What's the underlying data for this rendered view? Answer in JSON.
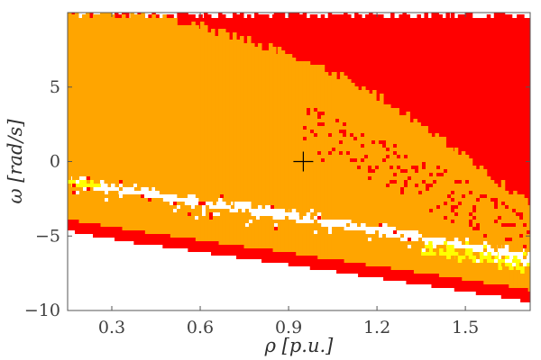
{
  "chart_data": {
    "type": "heatmap",
    "title": "",
    "xlabel": "ρ [p.u.]",
    "ylabel": "ω [rad/s]",
    "xlim": [
      0.15,
      1.72
    ],
    "ylim": [
      -10,
      10
    ],
    "xticks": [
      {
        "value": 0.3,
        "label": "0.3"
      },
      {
        "value": 0.6,
        "label": "0.6"
      },
      {
        "value": 0.9,
        "label": "0.9"
      },
      {
        "value": 1.2,
        "label": "1.2"
      },
      {
        "value": 1.5,
        "label": "1.5"
      }
    ],
    "yticks": [
      {
        "value": 5,
        "label": "5"
      },
      {
        "value": 0,
        "label": "0"
      },
      {
        "value": -5,
        "label": "−5"
      },
      {
        "value": -10,
        "label": "−10"
      }
    ],
    "colors": {
      "white": "#ffffff",
      "orange": "#ffa500",
      "red": "#ff0000",
      "yellow": "#ffff00",
      "marker": "#000000",
      "axes": "#555555"
    },
    "grid": false,
    "legend": "none",
    "marker": {
      "x": 0.95,
      "y": 0
    },
    "regions": [
      {
        "name": "red-upper-band",
        "color": "red",
        "x": [
          0.15,
          0.35,
          0.6,
          0.85,
          1.05,
          1.25,
          1.45,
          1.65,
          1.72
        ],
        "top": [
          10,
          10,
          10,
          10,
          10,
          10,
          10,
          10,
          10
        ],
        "bottom": [
          8.5,
          7.5,
          6.4,
          4.9,
          3.1,
          1.2,
          -0.7,
          -2.8,
          -3.6
        ],
        "ragged_edge": "top"
      },
      {
        "name": "orange-main-band",
        "color": "orange",
        "x": [
          0.15,
          0.35,
          0.6,
          0.85,
          1.05,
          1.25,
          1.45,
          1.65,
          1.72
        ],
        "top": [
          10,
          10,
          9.1,
          7.5,
          6.0,
          3.8,
          1.0,
          -2.0,
          -3.0
        ],
        "bottom": [
          -1.2,
          -1.8,
          -2.6,
          -3.3,
          -3.9,
          -4.6,
          -5.3,
          -6.0,
          -6.3
        ],
        "ragged_edge": "top"
      },
      {
        "name": "white-gap-band",
        "color": "white",
        "x": [
          0.15,
          0.35,
          0.6,
          0.85,
          1.05,
          1.25,
          1.45,
          1.65,
          1.72
        ],
        "top": [
          -1.2,
          -1.8,
          -2.6,
          -3.3,
          -3.9,
          -4.6,
          -5.3,
          -6.0,
          -6.3
        ],
        "bottom": [
          -1.6,
          -2.2,
          -3.0,
          -3.8,
          -4.4,
          -5.1,
          -5.8,
          -6.6,
          -6.9
        ],
        "ragged_edge": "both"
      },
      {
        "name": "orange-lower-band",
        "color": "orange",
        "x": [
          0.15,
          0.35,
          0.6,
          0.85,
          1.05,
          1.25,
          1.45,
          1.65,
          1.72
        ],
        "top": [
          -1.6,
          -2.2,
          -3.0,
          -3.8,
          -4.4,
          -5.1,
          -5.8,
          -6.6,
          -6.9
        ],
        "bottom": [
          -3.9,
          -4.6,
          -5.3,
          -6.0,
          -6.6,
          -7.2,
          -7.8,
          -8.4,
          -8.7
        ],
        "ragged_edge": "none"
      },
      {
        "name": "red-lower-band",
        "color": "red",
        "x": [
          0.15,
          0.35,
          0.6,
          0.85,
          1.05,
          1.25,
          1.45,
          1.65,
          1.72
        ],
        "top": [
          -3.9,
          -4.6,
          -5.3,
          -6.0,
          -6.6,
          -7.2,
          -7.8,
          -8.4,
          -8.7
        ],
        "bottom": [
          -4.7,
          -5.4,
          -6.1,
          -6.8,
          -7.4,
          -8.0,
          -8.6,
          -9.2,
          -9.5
        ],
        "ragged_edge": "none"
      },
      {
        "name": "yellow-streak-left",
        "color": "yellow",
        "x": [
          0.15,
          0.2,
          0.25
        ],
        "top": [
          -1.2,
          -1.3,
          -1.4
        ],
        "bottom": [
          -1.6,
          -1.7,
          -1.8
        ],
        "ragged_edge": "none"
      },
      {
        "name": "yellow-streak-right",
        "color": "yellow",
        "x": [
          1.35,
          1.45,
          1.55,
          1.65,
          1.72
        ],
        "top": [
          -5.6,
          -5.9,
          -6.2,
          -6.5,
          -6.7
        ],
        "bottom": [
          -6.1,
          -6.4,
          -6.8,
          -7.1,
          -7.3
        ],
        "ragged_edge": "both"
      }
    ]
  }
}
